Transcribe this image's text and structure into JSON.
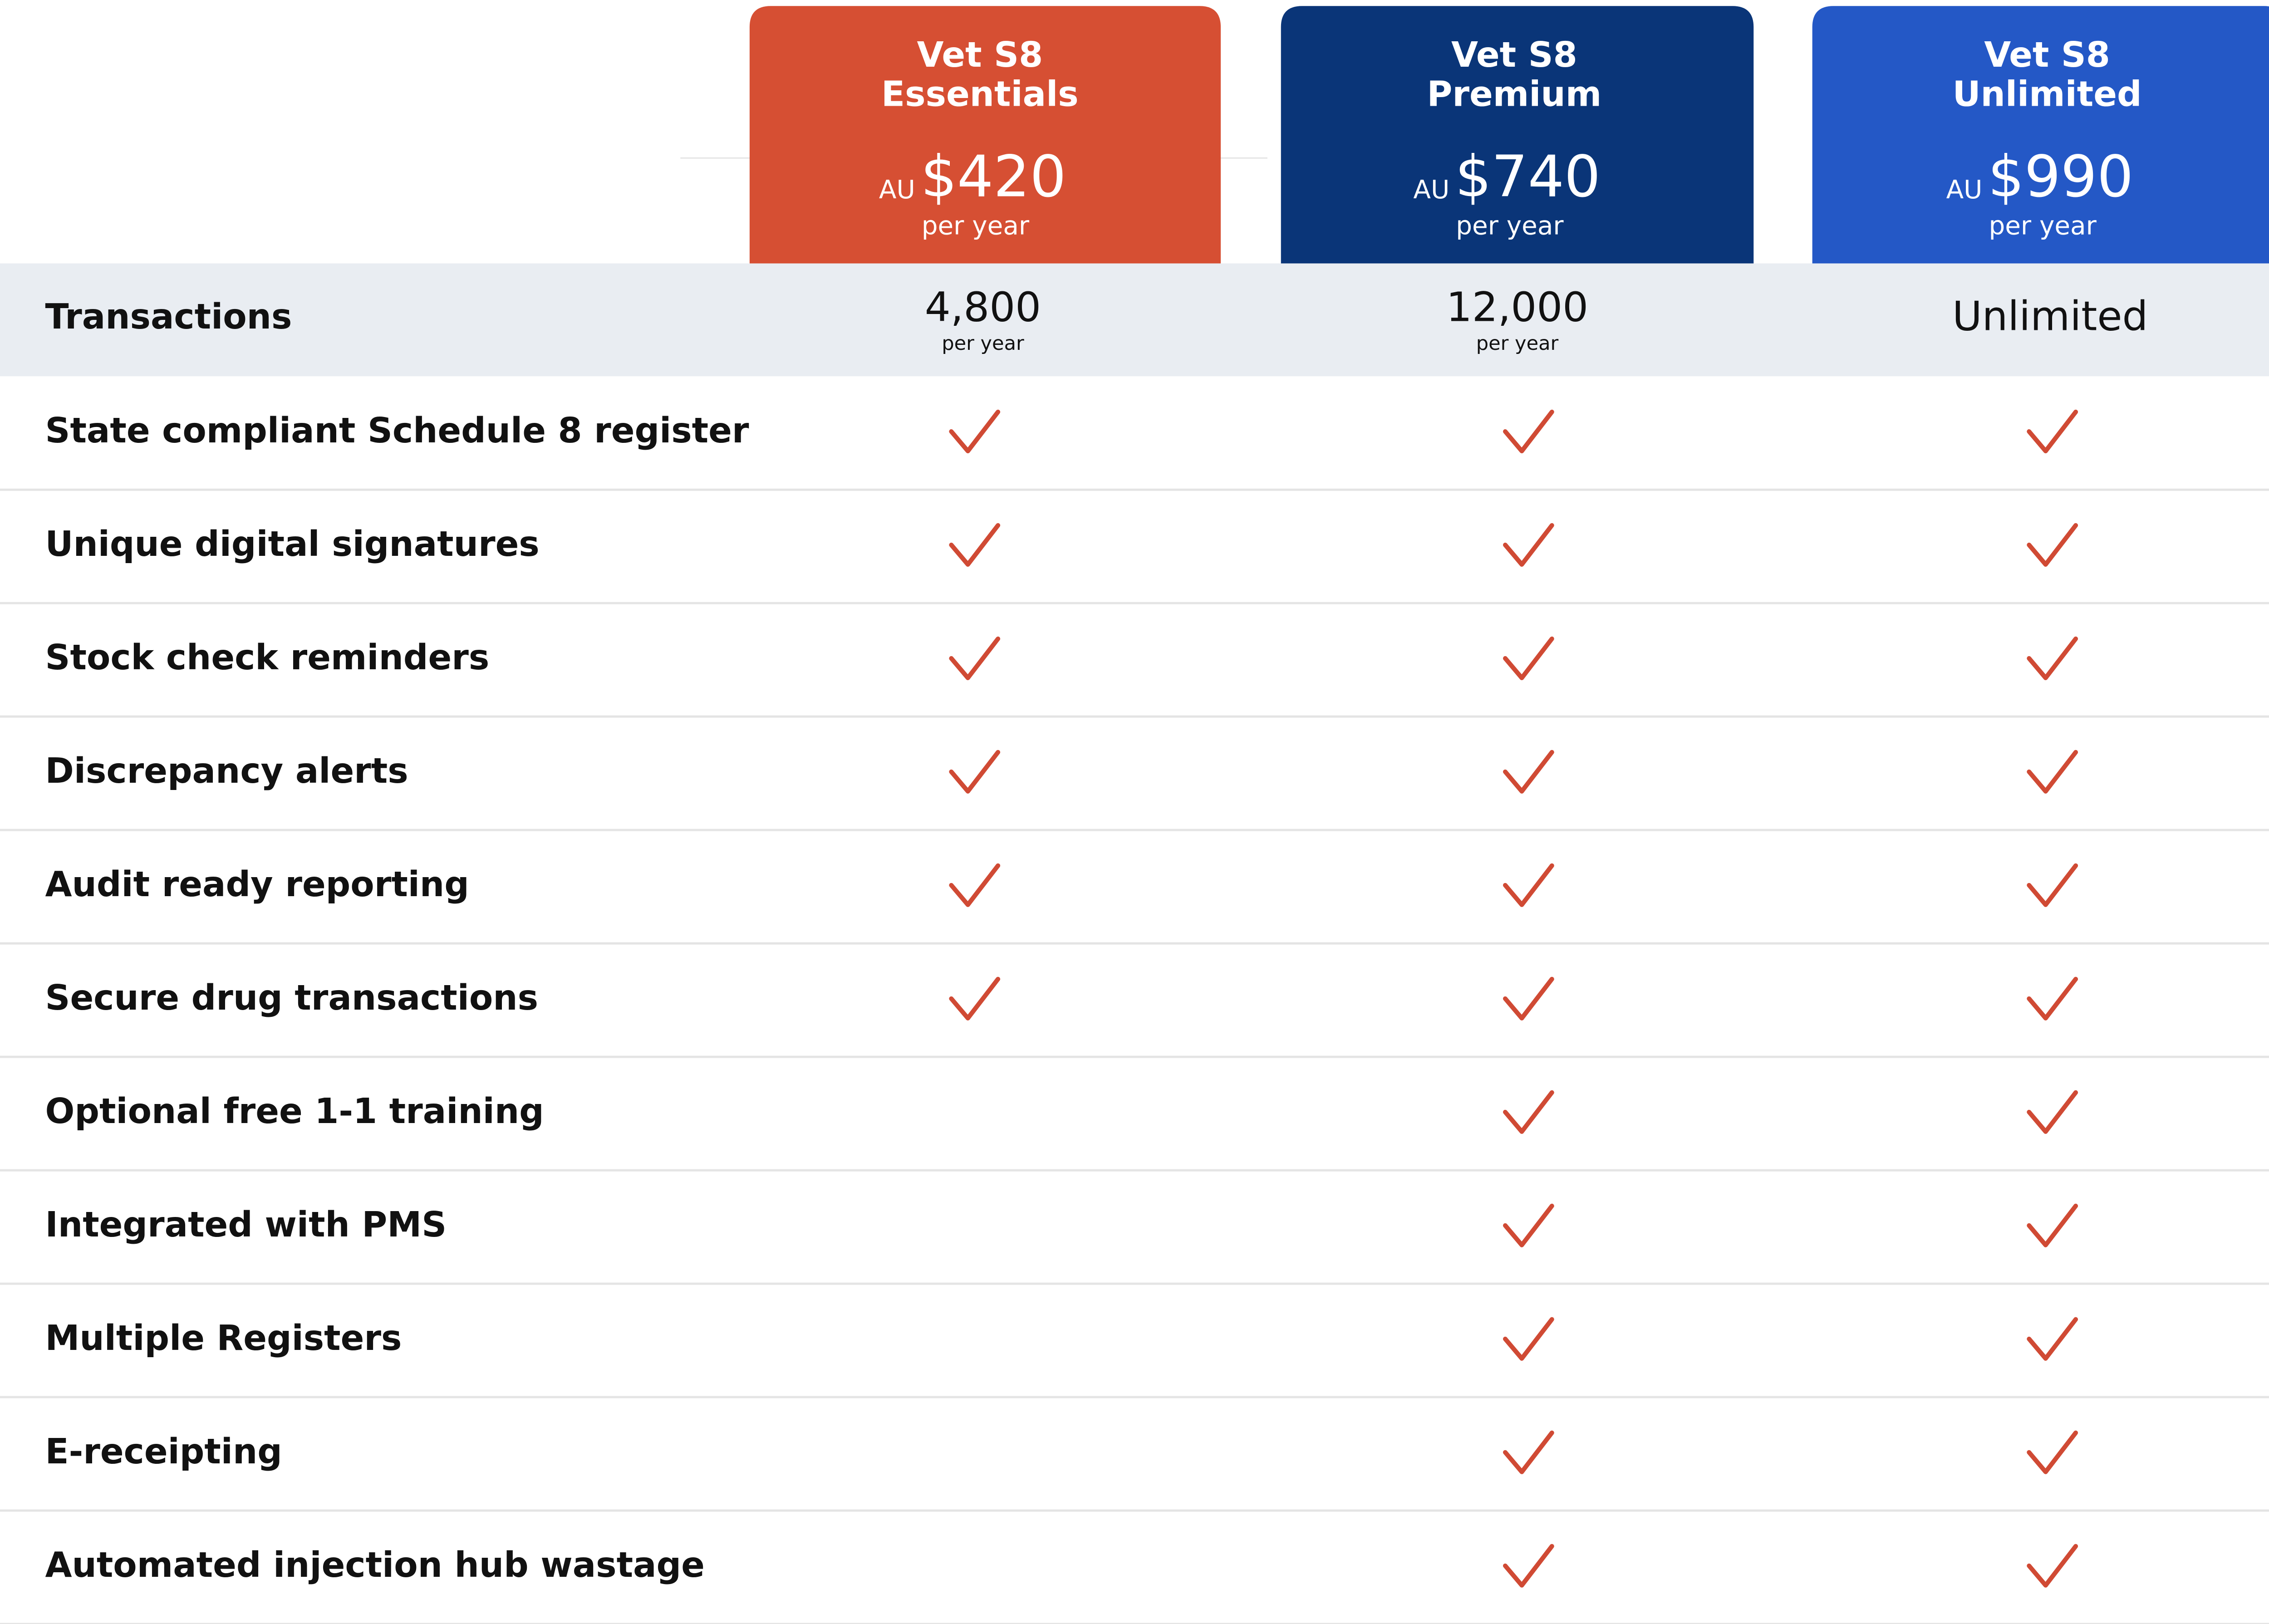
{
  "plans": [
    {
      "name": [
        "Vet S8",
        "Essentials"
      ],
      "currency": "AU",
      "price": "$420",
      "period": "per year",
      "color": "#d64f33"
    },
    {
      "name": [
        "Vet S8",
        "Premium"
      ],
      "currency": "AU",
      "price": "$740",
      "period": "per year",
      "color": "#0a3578"
    },
    {
      "name": [
        "Vet S8",
        "Unlimited"
      ],
      "currency": "AU",
      "price": "$990",
      "period": "per year",
      "color": "#2458c6"
    }
  ],
  "transactions": {
    "label": "Transactions",
    "values": [
      {
        "amount": "4,800",
        "period": "per year"
      },
      {
        "amount": "12,000",
        "period": "per year"
      },
      {
        "amount": "Unlimited"
      }
    ]
  },
  "features": [
    {
      "label": "State compliant Schedule 8 register",
      "checks": [
        true,
        true,
        true
      ]
    },
    {
      "label": "Unique digital signatures",
      "checks": [
        true,
        true,
        true
      ]
    },
    {
      "label": "Stock check reminders",
      "checks": [
        true,
        true,
        true
      ]
    },
    {
      "label": "Discrepancy alerts",
      "checks": [
        true,
        true,
        true
      ]
    },
    {
      "label": "Audit ready reporting",
      "checks": [
        true,
        true,
        true
      ]
    },
    {
      "label": "Secure drug transactions",
      "checks": [
        true,
        true,
        true
      ]
    },
    {
      "label": "Optional free 1-1 training",
      "checks": [
        false,
        true,
        true
      ]
    },
    {
      "label": "Integrated with PMS",
      "checks": [
        false,
        true,
        true
      ]
    },
    {
      "label": "Multiple Registers",
      "checks": [
        false,
        true,
        true
      ]
    },
    {
      "label": "E-receipting",
      "checks": [
        false,
        true,
        true
      ]
    },
    {
      "label": "Automated injection hub wastage",
      "checks": [
        false,
        true,
        true
      ]
    }
  ]
}
